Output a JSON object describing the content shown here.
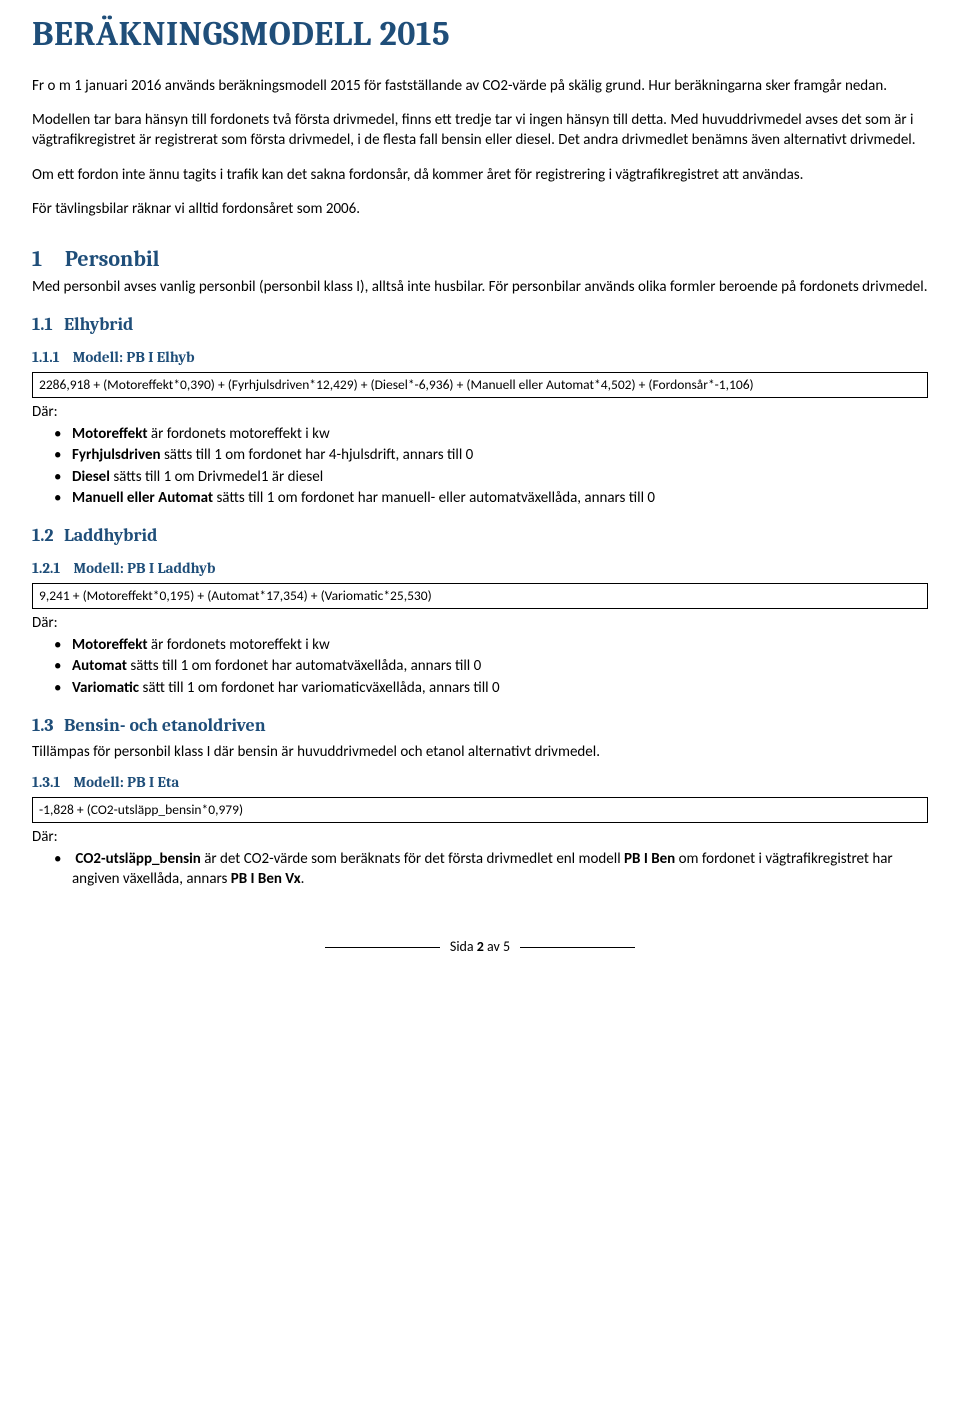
{
  "title": "BERÄKNINGSMODELL 2015",
  "intro": {
    "p1": "Fr o m 1 januari 2016 används beräkningsmodell 2015 för fastställande av CO2-värde på skälig grund. Hur beräkningarna sker framgår nedan.",
    "p2": "Modellen tar bara hänsyn till fordonets två första drivmedel, finns ett tredje tar vi ingen hänsyn till detta. Med huvuddrivmedel avses det som är i vägtrafikregistret är registrerat som första drivmedel, i de flesta fall bensin eller diesel. Det andra drivmedlet benämns även alternativt drivmedel.",
    "p3": "Om ett fordon inte ännu tagits i trafik kan det sakna fordonsår, då kommer året för registrering i vägtrafikregistret att användas.",
    "p4": "För tävlingsbilar räknar vi alltid fordonsåret som 2006."
  },
  "s1": {
    "num": "1",
    "title": "Personbil",
    "lead": "Med personbil avses vanlig personbil (personbil klass I), alltså inte husbilar. För personbilar används olika formler beroende på fordonets drivmedel."
  },
  "s11": {
    "num": "1.1",
    "title": "Elhybrid",
    "model_num": "1.1.1",
    "model_title": "Modell: PB I Elhyb",
    "formula": "2286,918 + (Motoreffekt*0,390) + (Fyrhjulsdriven*12,429) + (Diesel*-6,936) + (Manuell eller Automat*4,502) + (Fordonsår*-1,106)",
    "where": "Där:",
    "b1_a": "Motoreffekt",
    "b1_b": " är fordonets motoreffekt i kw",
    "b2_a": "Fyrhjulsdriven",
    "b2_b": " sätts till 1 om fordonet har 4-hjulsdrift, annars till 0",
    "b3_a": "Diesel",
    "b3_b": " sätts till 1 om Drivmedel1 är diesel",
    "b4_a": "Manuell eller Automat",
    "b4_b": " sätts till 1 om fordonet har manuell- eller automatväxellåda, annars till 0"
  },
  "s12": {
    "num": "1.2",
    "title": "Laddhybrid",
    "model_num": "1.2.1",
    "model_title": "Modell: PB I Laddhyb",
    "formula": "9,241 + (Motoreffekt*0,195) + (Automat*17,354) + (Variomatic*25,530)",
    "where": "Där:",
    "b1_a": "Motoreffekt",
    "b1_b": " är fordonets motoreffekt i kw",
    "b2_a": "Automat",
    "b2_b": " sätts till 1 om fordonet har automatväxellåda, annars till 0",
    "b3_a": "Variomatic",
    "b3_b": " sätt till 1 om fordonet har variomaticväxellåda, annars till 0"
  },
  "s13": {
    "num": "1.3",
    "title": "Bensin- och etanoldriven",
    "lead": "Tillämpas för personbil klass I där bensin är huvuddrivmedel och etanol alternativt drivmedel.",
    "model_num": "1.3.1",
    "model_title": "Modell: PB I Eta",
    "formula": "-1,828 + (CO2-utsläpp_bensin*0,979)",
    "where": "Där:",
    "b1_a": "CO2-utsläpp_bensin",
    "b1_b": " är det CO2-värde som beräknats för det första drivmedlet enl modell ",
    "b1_c": "PB I Ben",
    "b1_d": " om fordonet i vägtrafikregistret har angiven växellåda, annars ",
    "b1_e": "PB I Ben Vx",
    "b1_f": "."
  },
  "footer": {
    "label_a": "Sida ",
    "page": "2",
    "label_b": " av 5"
  }
}
